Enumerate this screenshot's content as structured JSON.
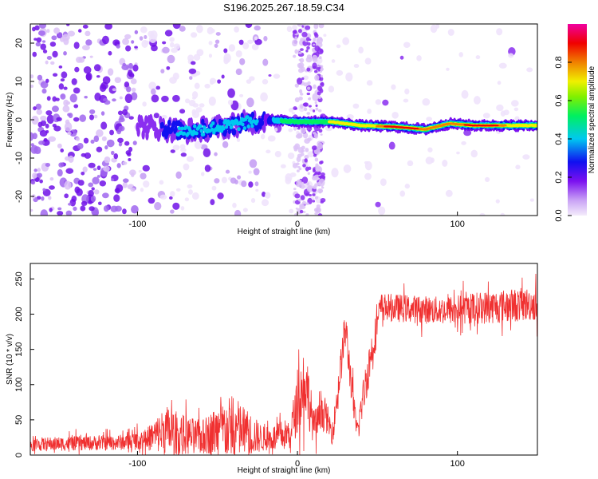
{
  "title": "S196.2025.267.18.59.C34",
  "chart_data": [
    {
      "type": "heatmap",
      "xlabel": "Height of straight line (km)",
      "ylabel": "Frequency (Hz)",
      "xlim": [
        -167,
        150
      ],
      "ylim": [
        -25,
        25
      ],
      "xticks": [
        -100,
        0,
        100
      ],
      "yticks": [
        -20,
        -10,
        0,
        10,
        20
      ],
      "xtick_labels": [
        "-100",
        "0",
        "100"
      ],
      "ytick_labels": [
        "-20",
        "-10",
        "0",
        "10",
        "20"
      ],
      "colorbar": {
        "label": "Normalized spectral amplitude",
        "range": [
          0,
          1
        ],
        "ticks": [
          0.0,
          0.2,
          0.4,
          0.6,
          0.8
        ],
        "tick_labels": [
          "0.0",
          "0.2",
          "0.4",
          "0.6",
          "0.8"
        ],
        "colormap": [
          "#e8d6f8",
          "#7b10f0",
          "#1010f0",
          "#00c8f0",
          "#00f060",
          "#a0f000",
          "#f0f000",
          "#f08000",
          "#f00000",
          "#f000a0"
        ]
      },
      "ridge": {
        "description_points": [
          {
            "x": -100,
            "y": -1.5
          },
          {
            "x": -70,
            "y": -3.0
          },
          {
            "x": -50,
            "y": -2.0
          },
          {
            "x": -20,
            "y": 0.0
          },
          {
            "x": 0,
            "y": -0.5
          },
          {
            "x": 20,
            "y": -0.5
          },
          {
            "x": 40,
            "y": -1.5
          },
          {
            "x": 60,
            "y": -1.8
          },
          {
            "x": 80,
            "y": -2.5
          },
          {
            "x": 95,
            "y": -1.0
          },
          {
            "x": 110,
            "y": -1.5
          },
          {
            "x": 150,
            "y": -1.5
          }
        ]
      }
    },
    {
      "type": "line",
      "xlabel": "Height of straight line (km)",
      "ylabel": "SNR (10 * v/v)",
      "xlim": [
        -167,
        150
      ],
      "ylim": [
        0,
        272
      ],
      "xticks": [
        -100,
        0,
        100
      ],
      "yticks": [
        0,
        50,
        100,
        150,
        200,
        250
      ],
      "xtick_labels": [
        "-100",
        "0",
        "100"
      ],
      "ytick_labels": [
        "0",
        "50",
        "100",
        "150",
        "200",
        "250"
      ],
      "series": [
        {
          "name": "SNR",
          "color": "#f03030",
          "envelope": [
            {
              "x": -167,
              "mean": 15,
              "spread": 12
            },
            {
              "x": -110,
              "mean": 18,
              "spread": 14
            },
            {
              "x": -95,
              "mean": 22,
              "spread": 18
            },
            {
              "x": -82,
              "mean": 35,
              "spread": 45
            },
            {
              "x": -70,
              "mean": 28,
              "spread": 35
            },
            {
              "x": -60,
              "mean": 25,
              "spread": 30
            },
            {
              "x": -50,
              "mean": 35,
              "spread": 45
            },
            {
              "x": -40,
              "mean": 38,
              "spread": 60
            },
            {
              "x": -30,
              "mean": 30,
              "spread": 40
            },
            {
              "x": -20,
              "mean": 22,
              "spread": 20
            },
            {
              "x": -5,
              "mean": 30,
              "spread": 30
            },
            {
              "x": 5,
              "mean": 110,
              "spread": 70
            },
            {
              "x": 10,
              "mean": 40,
              "spread": 30
            },
            {
              "x": 17,
              "mean": 60,
              "spread": 30
            },
            {
              "x": 22,
              "mean": 30,
              "spread": 20
            },
            {
              "x": 30,
              "mean": 180,
              "spread": 40
            },
            {
              "x": 37,
              "mean": 30,
              "spread": 25
            },
            {
              "x": 44,
              "mean": 120,
              "spread": 40
            },
            {
              "x": 52,
              "mean": 210,
              "spread": 25
            },
            {
              "x": 90,
              "mean": 205,
              "spread": 25
            },
            {
              "x": 120,
              "mean": 210,
              "spread": 30
            },
            {
              "x": 150,
              "mean": 215,
              "spread": 30
            }
          ]
        }
      ]
    }
  ]
}
